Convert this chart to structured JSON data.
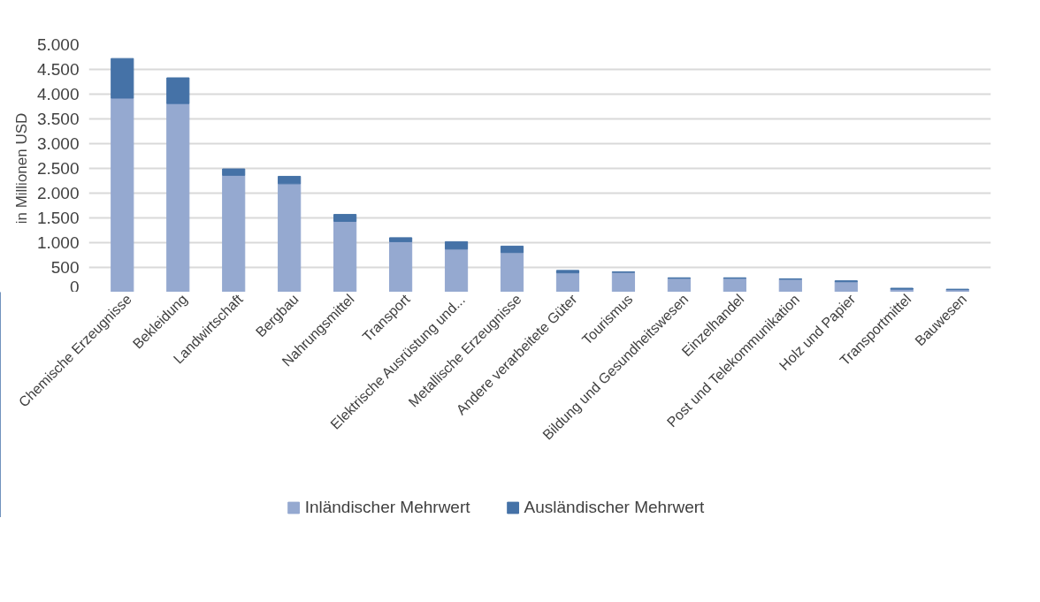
{
  "chart_data": {
    "type": "bar",
    "stacked": true,
    "ylabel": "in Millionen USD",
    "categories": [
      "Chemische Erzeugnisse",
      "Bekleidung",
      "Landwirtschaft",
      "Bergbau",
      "Nahrungsmittel",
      "Transport",
      "Elektrische Ausrüstung und...",
      "Metallische Erzeugnisse",
      "Andere verarbeitete Güter",
      "Tourismus",
      "Bildung und Gesundheitswesen",
      "Einzelhandel",
      "Post und Telekommunikation",
      "Holz und Papier",
      "Transportmittel",
      "Bauwesen"
    ],
    "series": [
      {
        "name": "Inländischer Mehrwert",
        "color": "#95a9d0",
        "values": [
          3920,
          3810,
          2360,
          2190,
          1430,
          1020,
          870,
          800,
          390,
          400,
          280,
          280,
          260,
          210,
          60,
          50
        ]
      },
      {
        "name": "Ausländischer Mehrwert",
        "color": "#4572a7",
        "values": [
          800,
          520,
          130,
          150,
          140,
          80,
          150,
          130,
          50,
          10,
          10,
          10,
          10,
          20,
          20,
          10
        ]
      }
    ],
    "ylim": [
      0,
      5000
    ],
    "yticks": [
      {
        "value": 0,
        "label": "0"
      },
      {
        "value": 500,
        "label": "500"
      },
      {
        "value": 1000,
        "label": "1.000"
      },
      {
        "value": 1500,
        "label": "1.500"
      },
      {
        "value": 2000,
        "label": "2.000"
      },
      {
        "value": 2500,
        "label": "2.500"
      },
      {
        "value": 3000,
        "label": "3.000"
      },
      {
        "value": 3500,
        "label": "3.500"
      },
      {
        "value": 4000,
        "label": "4.000"
      },
      {
        "value": 4500,
        "label": "4.500"
      },
      {
        "value": 5000,
        "label": "5.000"
      }
    ],
    "grid": "y",
    "legend": "bottom"
  }
}
